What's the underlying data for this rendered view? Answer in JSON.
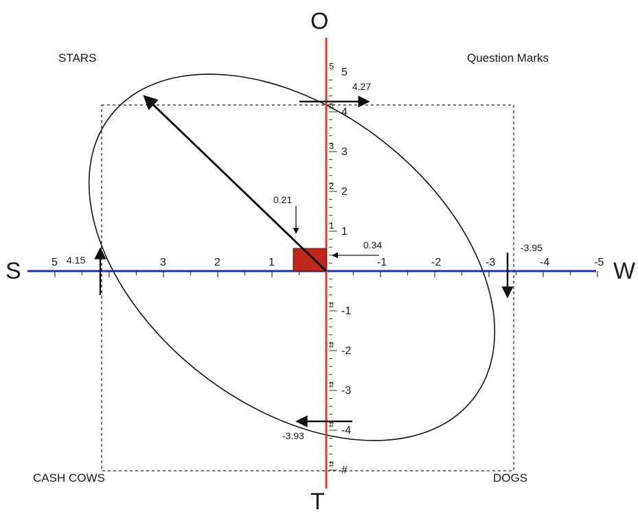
{
  "axes": {
    "top": "O",
    "bottom": "T",
    "left": "S",
    "right": "W"
  },
  "quadrants": {
    "top_left": "STARS",
    "top_right": "Question Marks",
    "bottom_left": "CASH COWS",
    "bottom_right": "DOGS"
  },
  "h_ticks": [
    {
      "v": 5,
      "label": "5"
    },
    {
      "v": 3,
      "label": "3"
    },
    {
      "v": 2,
      "label": "2"
    },
    {
      "v": 1,
      "label": "1"
    },
    {
      "v": -1,
      "label": "-1"
    },
    {
      "v": -2,
      "label": "-2"
    },
    {
      "v": -3,
      "label": "-3"
    },
    {
      "v": -4,
      "label": "-4"
    },
    {
      "v": -5,
      "label": "-5"
    }
  ],
  "v_ticks": [
    {
      "v": 5,
      "label": "5",
      "inner": "5"
    },
    {
      "v": 4,
      "label": "4",
      "inner": "#"
    },
    {
      "v": 3,
      "label": "3",
      "inner": "3"
    },
    {
      "v": 2,
      "label": "2",
      "inner": "2"
    },
    {
      "v": 1,
      "label": "1",
      "inner": "1"
    },
    {
      "v": -1,
      "label": "-1",
      "inner": "#"
    },
    {
      "v": -2,
      "label": "-2",
      "inner": "#"
    },
    {
      "v": -3,
      "label": "-3",
      "inner": "#"
    },
    {
      "v": -4,
      "label": "-4",
      "inner": "#"
    },
    {
      "v": -5,
      "label": "#",
      "inner": "#"
    }
  ],
  "values": {
    "strengths": "4.15",
    "opportunities": "4.27",
    "weaknesses": "-3.95",
    "threats": "-3.93",
    "point_y": "0.21",
    "point_x": "0.34"
  },
  "scores": {
    "strengths": 4.15,
    "opportunities": 4.27,
    "weaknesses": -3.95,
    "threats": -3.93,
    "point_x": 0.34,
    "point_y": 0.21
  },
  "colors": {
    "vertical_axis": "#e03a2f",
    "horizontal_axis": "#1f2fa8",
    "point_box": "#c0281e",
    "lines": "#111111"
  }
}
